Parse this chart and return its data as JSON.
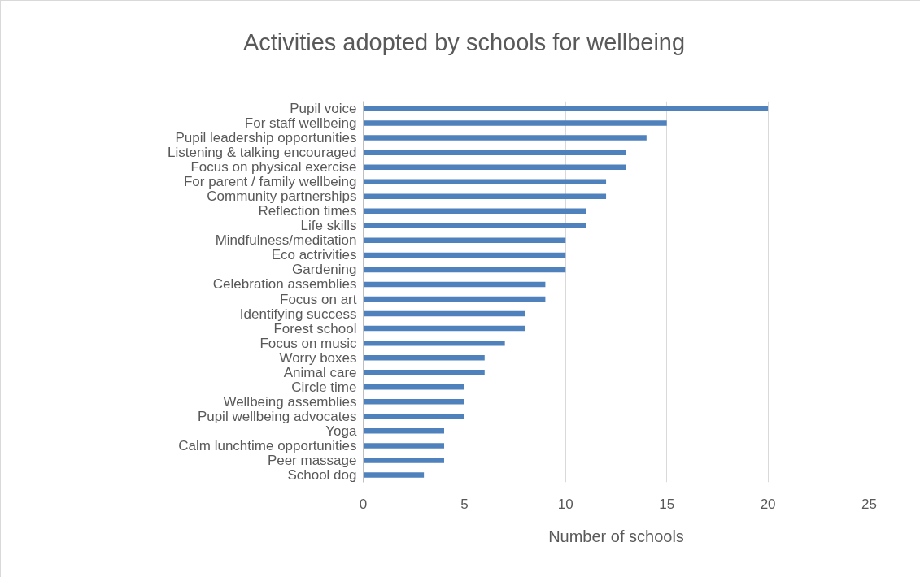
{
  "chart_data": {
    "type": "bar",
    "orientation": "horizontal",
    "title": "Activities adopted by schools for wellbeing",
    "xlabel": "Number of schools",
    "categories": [
      "Pupil voice",
      "For staff wellbeing",
      "Pupil leadership opportunities",
      "Listening & talking encouraged",
      "Focus on physical exercise",
      "For parent / family wellbeing",
      "Community partnerships",
      "Reflection times",
      "Life skills",
      "Mindfulness/meditation",
      "Eco actrivities",
      "Gardening",
      "Celebration assemblies",
      "Focus on art",
      "Identifying success",
      "Forest school",
      "Focus on music",
      "Worry boxes",
      "Animal care",
      "Circle time",
      "Wellbeing assemblies",
      "Pupil wellbeing advocates",
      "Yoga",
      "Calm lunchtime opportunities",
      "Peer massage",
      "School dog"
    ],
    "values": [
      20,
      15,
      14,
      13,
      13,
      12,
      12,
      11,
      11,
      10,
      10,
      10,
      9,
      9,
      8,
      8,
      7,
      6,
      6,
      5,
      5,
      5,
      4,
      4,
      4,
      3
    ],
    "color": "#4f81bd",
    "xlim": [
      0,
      25
    ],
    "xticks": [
      0,
      5,
      10,
      15,
      20,
      25
    ],
    "grid": "x"
  }
}
